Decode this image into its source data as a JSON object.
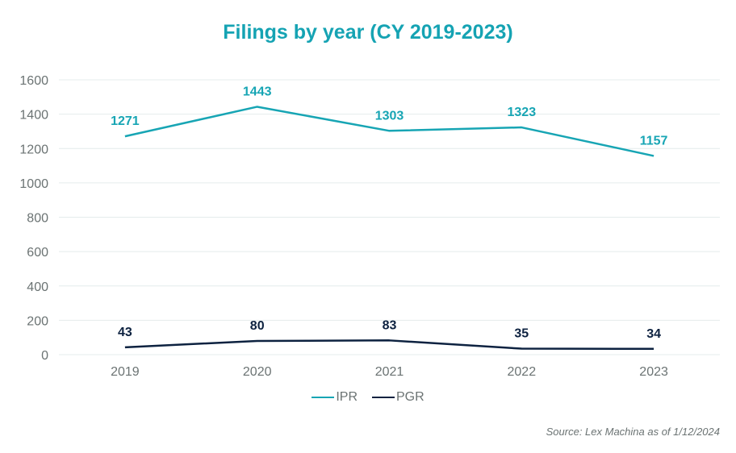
{
  "chart_data": {
    "type": "line",
    "title": "Filings by year (CY 2019-2023)",
    "xlabel": "",
    "ylabel": "",
    "categories": [
      "2019",
      "2020",
      "2021",
      "2022",
      "2023"
    ],
    "ylim": [
      0,
      1600
    ],
    "yticks": [
      0,
      200,
      400,
      600,
      800,
      1000,
      1200,
      1400,
      1600
    ],
    "grid": true,
    "legend_position": "bottom",
    "series": [
      {
        "name": "IPR",
        "color": "#17a5b4",
        "values": [
          1271,
          1443,
          1303,
          1323,
          1157
        ]
      },
      {
        "name": "PGR",
        "color": "#0d2240",
        "values": [
          43,
          80,
          83,
          35,
          34
        ]
      }
    ],
    "source_note": "Source: Lex Machina  as of 1/12/2024"
  }
}
